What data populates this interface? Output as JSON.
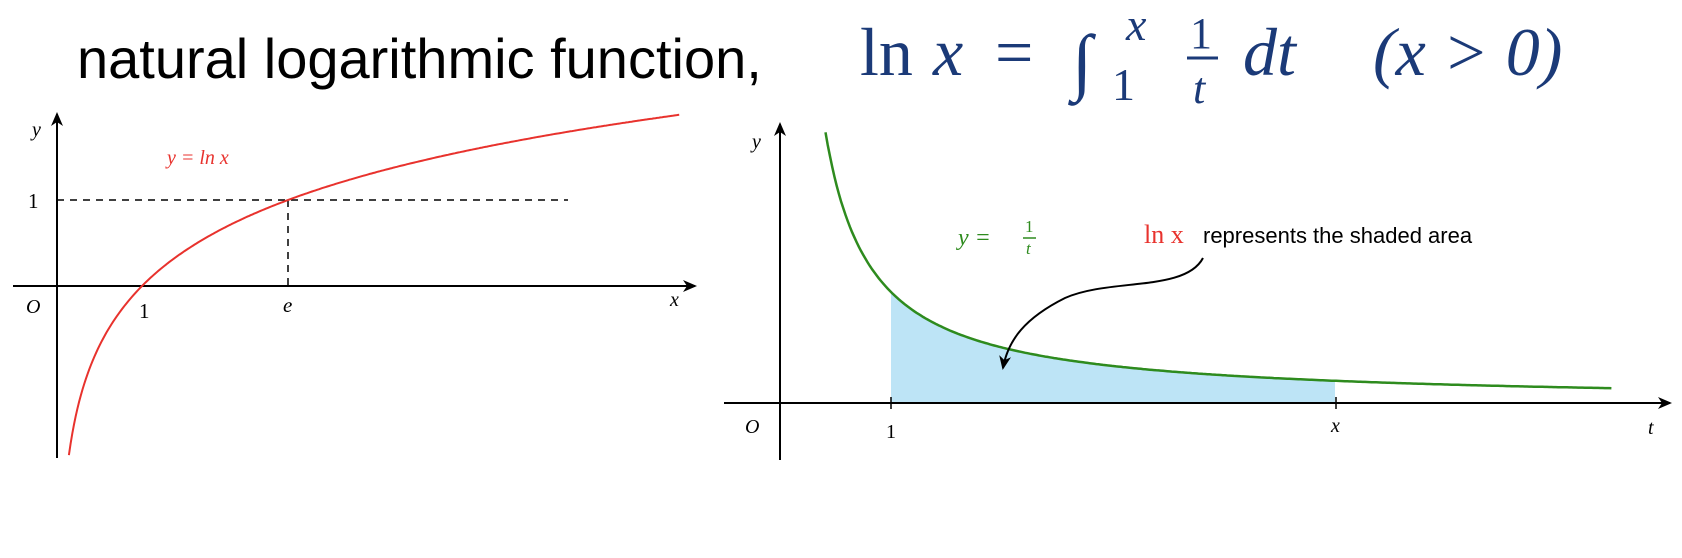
{
  "title": {
    "text": "natural logarithmic function,",
    "formula": {
      "lhs": "ln",
      "lhs_var": "x",
      "equals": "=",
      "integral": "∫",
      "upper": "x",
      "lower": "1",
      "frac_num": "1",
      "frac_den": "t",
      "differential": "dt",
      "condition": "(x > 0)"
    },
    "formula_color": "#1b3a78"
  },
  "chart_data": [
    {
      "type": "line",
      "function": "y = ln x",
      "curve_label": "y = ln x",
      "curve_color": "#e8322d",
      "xlabel": "x",
      "ylabel": "y",
      "origin_label": "O",
      "x_ticks": [
        {
          "value": 1,
          "label": "1"
        },
        {
          "value": 2.718,
          "label": "e"
        }
      ],
      "y_ticks": [
        {
          "value": 1,
          "label": "1"
        }
      ],
      "xlim": [
        -0.5,
        7.5
      ],
      "ylim": [
        -2,
        2
      ],
      "guides": {
        "point": [
          2.718,
          1
        ],
        "style": "dashed"
      },
      "grid": false
    },
    {
      "type": "area",
      "function": "y = 1/t",
      "curve_label_lhs": "y =",
      "curve_label_num": "1",
      "curve_label_den": "t",
      "curve_color": "#2e8b1e",
      "fill_color": "#bde4f6",
      "xlabel": "t",
      "ylabel": "y",
      "origin_label": "O",
      "x_ticks": [
        {
          "value": 1,
          "label": "1"
        },
        {
          "value": 5,
          "label": "x"
        }
      ],
      "shaded_interval": [
        1,
        5
      ],
      "xlim": [
        -0.5,
        8
      ],
      "ylim": [
        -0.5,
        2.5
      ],
      "annotation": {
        "math": "ln x",
        "text": "represents the shaded area",
        "math_color": "#e8322d"
      },
      "grid": false
    }
  ]
}
